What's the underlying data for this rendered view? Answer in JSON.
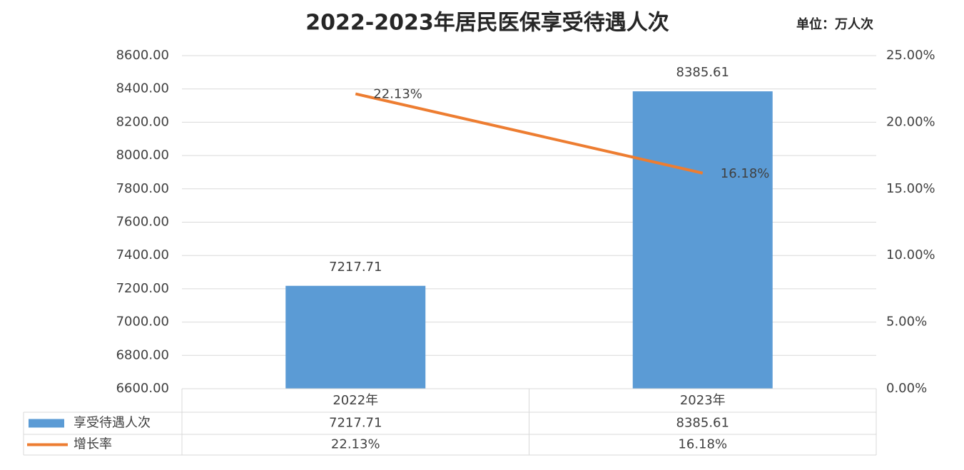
{
  "chart_data": {
    "type": "bar-line",
    "title": "2022-2023年居民医保享受待遇人次",
    "unit": "单位：万人次",
    "categories": [
      "2022年",
      "2023年"
    ],
    "series": [
      {
        "name": "享受待遇人次",
        "type": "bar",
        "color": "#5b9bd5",
        "values": [
          7217.71,
          8385.61
        ]
      },
      {
        "name": "增长率",
        "type": "line",
        "axis": "y2",
        "color": "#ed7d31",
        "values": [
          22.13,
          16.18
        ],
        "value_labels": [
          "22.13%",
          "16.18%"
        ]
      }
    ],
    "ylim": [
      6600,
      8600
    ],
    "yticks": [
      {
        "value": 6600,
        "label": "6600.00"
      },
      {
        "value": 6800,
        "label": "6800.00"
      },
      {
        "value": 7000,
        "label": "7000.00"
      },
      {
        "value": 7200,
        "label": "7200.00"
      },
      {
        "value": 7400,
        "label": "7400.00"
      },
      {
        "value": 7600,
        "label": "7600.00"
      },
      {
        "value": 7800,
        "label": "7800.00"
      },
      {
        "value": 8000,
        "label": "8000.00"
      },
      {
        "value": 8200,
        "label": "8200.00"
      },
      {
        "value": 8400,
        "label": "8400.00"
      },
      {
        "value": 8600,
        "label": "8600.00"
      }
    ],
    "y2lim": [
      0,
      25
    ],
    "y2ticks": [
      {
        "value": 0,
        "label": "0.00%"
      },
      {
        "value": 5,
        "label": "5.00%"
      },
      {
        "value": 10,
        "label": "10.00%"
      },
      {
        "value": 15,
        "label": "15.00%"
      },
      {
        "value": 20,
        "label": "20.00%"
      },
      {
        "value": 25,
        "label": "25.00%"
      }
    ],
    "grid": true,
    "data_table": true
  }
}
